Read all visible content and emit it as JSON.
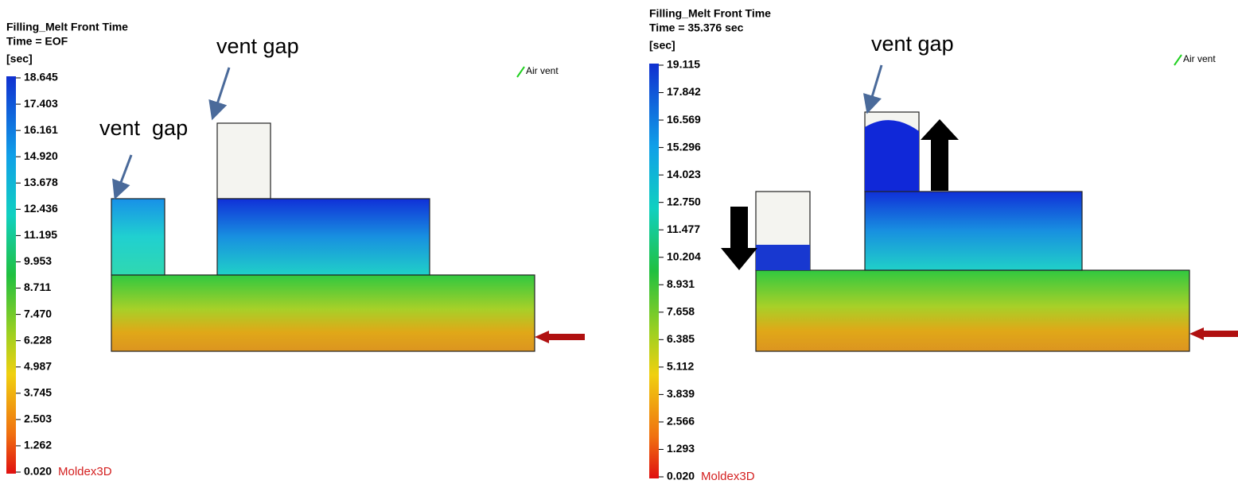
{
  "panels": [
    {
      "title": "Filling_Melt Front Time",
      "subtitle": "Time = EOF",
      "unit": "[sec]",
      "legend": [
        "18.645",
        "17.403",
        "16.161",
        "14.920",
        "13.678",
        "12.436",
        "11.195",
        "9.953",
        "8.711",
        "7.470",
        "6.228",
        "4.987",
        "3.745",
        "2.503",
        "1.262",
        "0.020"
      ],
      "brand": "Moldex3D",
      "vent_label": "Air vent",
      "annotations": [
        "vent gap",
        "vent  gap"
      ]
    },
    {
      "title": "Filling_Melt Front Time",
      "subtitle": "Time = 35.376 sec",
      "unit": "[sec]",
      "legend": [
        "19.115",
        "17.842",
        "16.569",
        "15.296",
        "14.023",
        "12.750",
        "11.477",
        "10.204",
        "8.931",
        "7.658",
        "6.385",
        "5.112",
        "3.839",
        "2.566",
        "1.293",
        "0.020"
      ],
      "brand": "Moldex3D",
      "vent_label": "Air vent",
      "annotations": [
        "vent gap"
      ]
    }
  ]
}
